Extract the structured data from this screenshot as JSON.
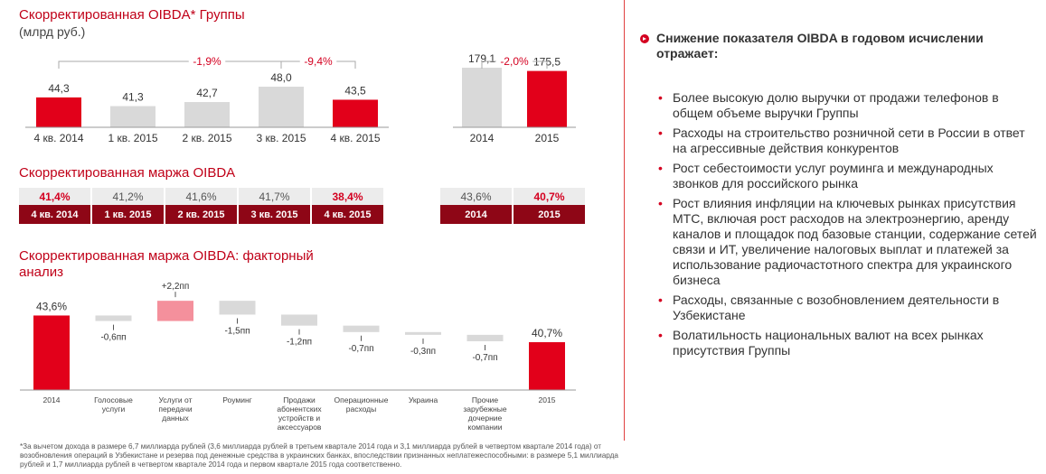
{
  "titles": {
    "oibda": "Скорректированная OIBDA* Группы",
    "unit": "(млрд руб.)",
    "margin": "Скорректированная маржа OIBDA",
    "factor_line1": "Скорректированная маржа OIBDA: факторный",
    "factor_line2": "анализ"
  },
  "colors": {
    "red": "#e2001a",
    "grey": "#d9d9d9",
    "pink": "#f4909c",
    "dark_red": "#8e0616",
    "accent": "#c00018"
  },
  "chart_data": [
    {
      "type": "bar",
      "categories": [
        "4 кв. 2014",
        "1 кв. 2015",
        "2 кв. 2015",
        "3 кв. 2015",
        "4 кв. 2015"
      ],
      "values": [
        44.3,
        41.3,
        42.7,
        48.0,
        43.5
      ],
      "value_labels": [
        "44,3",
        "41,3",
        "42,7",
        "48,0",
        "43,5"
      ],
      "highlight": [
        true,
        false,
        false,
        false,
        true
      ],
      "annotations": [
        {
          "text": "-1,9%",
          "from": "4 кв. 2014",
          "to": "4 кв. 2015"
        },
        {
          "text": "-9,4%",
          "from": "3 кв. 2015",
          "to": "4 кв. 2015"
        }
      ]
    },
    {
      "type": "bar",
      "categories": [
        "2014",
        "2015"
      ],
      "values": [
        179.1,
        175.5
      ],
      "value_labels": [
        "179,1",
        "175,5"
      ],
      "highlight": [
        false,
        true
      ],
      "annotations": [
        {
          "text": "-2,0%",
          "from": "2014",
          "to": "2015"
        }
      ]
    },
    {
      "type": "table",
      "quarterly": {
        "values": [
          "41,4%",
          "41,2%",
          "41,6%",
          "41,7%",
          "38,4%"
        ],
        "highlight": [
          true,
          false,
          false,
          false,
          true
        ],
        "labels": [
          "4 кв. 2014",
          "1 кв. 2015",
          "2 кв. 2015",
          "3 кв. 2015",
          "4 кв. 2015"
        ]
      },
      "annual": {
        "values": [
          "43,6%",
          "40,7%"
        ],
        "highlight": [
          false,
          true
        ],
        "labels": [
          "2014",
          "2015"
        ]
      }
    },
    {
      "type": "bar",
      "subtype": "waterfall",
      "categories": [
        "2014",
        "Голосовые услуги",
        "Услуги от передачи данных",
        "Роуминг",
        "Продажи абонентских устройств и аксессуаров",
        "Операционные расходы",
        "Украина",
        "Прочие зарубежные дочерние компании",
        "2015"
      ],
      "category_lines": [
        [
          "2014"
        ],
        [
          "Голосовые",
          "услуги"
        ],
        [
          "Услуги от",
          "передачи",
          "данных"
        ],
        [
          "Роуминг"
        ],
        [
          "Продажи",
          "абонентских",
          "устройств и",
          "аксессуаров"
        ],
        [
          "Операционные",
          "расходы"
        ],
        [
          "Украина"
        ],
        [
          "Прочие",
          "зарубежные",
          "дочерние",
          "компании"
        ],
        [
          "2015"
        ]
      ],
      "values": [
        43.6,
        -0.6,
        2.2,
        -1.5,
        -1.2,
        -0.7,
        -0.3,
        -0.7,
        40.7
      ],
      "value_labels": [
        "43,6%",
        "-0,6пп",
        "+2,2пп",
        "-1,5пп",
        "-1,2пп",
        "-0,7пп",
        "-0,3пп",
        "-0,7пп",
        "40,7%"
      ],
      "kinds": [
        "total",
        "delta",
        "delta",
        "delta",
        "delta",
        "delta",
        "delta",
        "delta",
        "total"
      ]
    }
  ],
  "right_panel": {
    "heading": "Снижение показателя OIBDA в годовом исчислении отражает:",
    "bullets": [
      "Более высокую долю выручки от продажи телефонов в общем объеме выручки Группы",
      "Расходы на строительство розничной сети в России в ответ на агрессивные действия конкурентов",
      "Рост себестоимости услуг роуминга и международных звонков для российского рынка",
      "Рост влияния инфляции на ключевых рынках присутствия МТС, включая рост расходов на электроэнергию, аренду каналов и площадок под базовые станции, содержание сетей связи и ИТ, увеличение налоговых выплат и платежей за использование радиочастотного спектра для украинского бизнеса",
      "Расходы, связанные с возобновлением деятельности в Узбекистане",
      "Волатильность национальных валют на всех рынках присутствия Группы"
    ]
  },
  "footnote": "*За вычетом дохода в размере 6,7 миллиарда рублей (3,6 миллиарда рублей в третьем квартале 2014 года и 3,1 миллиарда рублей в четвертом квартале 2014 года) от возобновления операций в Узбекистане и резерва под денежные средства в украинских банках, впоследствии признанных неплатежеспособными: в размере 5,1 миллиарда рублей и 1,7 миллиарда рублей в четвертом квартале 2014 года и первом квартале 2015 года соответственно."
}
